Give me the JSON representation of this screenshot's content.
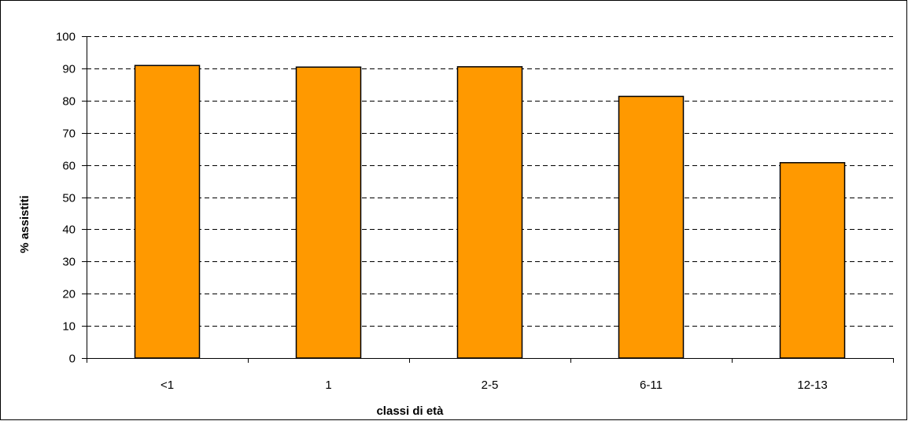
{
  "chart_data": {
    "type": "bar",
    "title": "",
    "xlabel": "classi di età",
    "ylabel": "% assistiti",
    "categories": [
      "<1",
      "1",
      "2-5",
      "6-11",
      "12-13"
    ],
    "values": [
      90.9,
      90.4,
      90.5,
      81.3,
      60.7
    ],
    "ylim": [
      0,
      100
    ],
    "yticks": [
      0,
      10,
      20,
      30,
      40,
      50,
      60,
      70,
      80,
      90,
      100
    ],
    "grid": true,
    "grid_style": "dashed",
    "legend": "none",
    "colors": {
      "bar": "#ff9900",
      "bar_edge": "#000000",
      "grid": "#000000"
    }
  }
}
